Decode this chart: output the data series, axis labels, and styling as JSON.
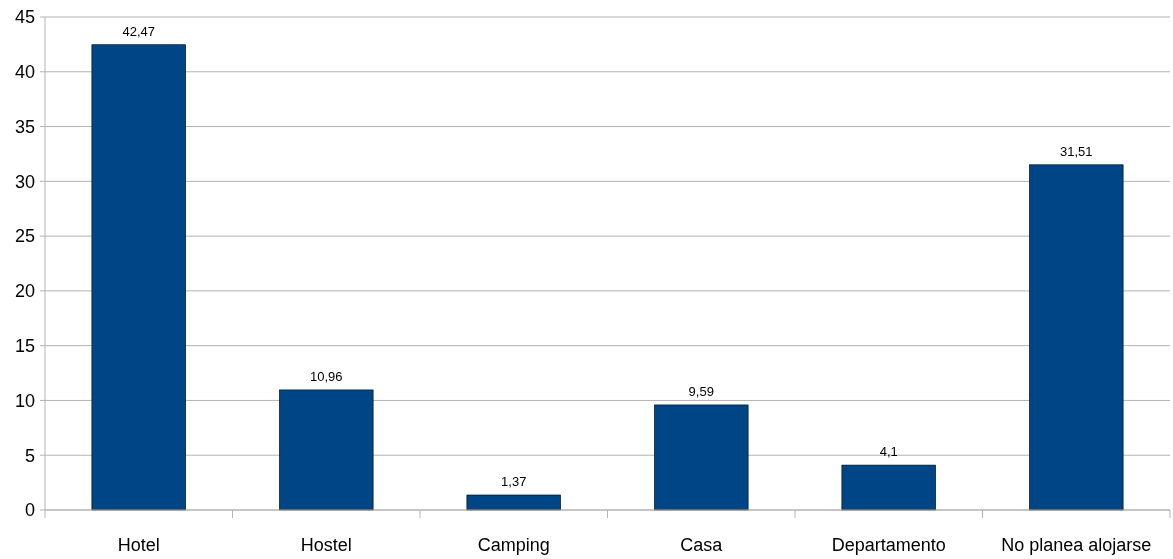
{
  "chart_data": {
    "type": "bar",
    "categories": [
      "Hotel",
      "Hostel",
      "Camping",
      "Casa",
      "Departamento",
      "No planea alojarse"
    ],
    "values": [
      42.47,
      10.96,
      1.37,
      9.59,
      4.1,
      31.51
    ],
    "value_labels": [
      "42,47",
      "10,96",
      "1,37",
      "9,59",
      "4,1",
      "31,51"
    ],
    "color": "#004586",
    "ylim": [
      0,
      45
    ],
    "yticks": [
      0,
      5,
      10,
      15,
      20,
      25,
      30,
      35,
      40,
      45
    ],
    "grid": "y"
  }
}
